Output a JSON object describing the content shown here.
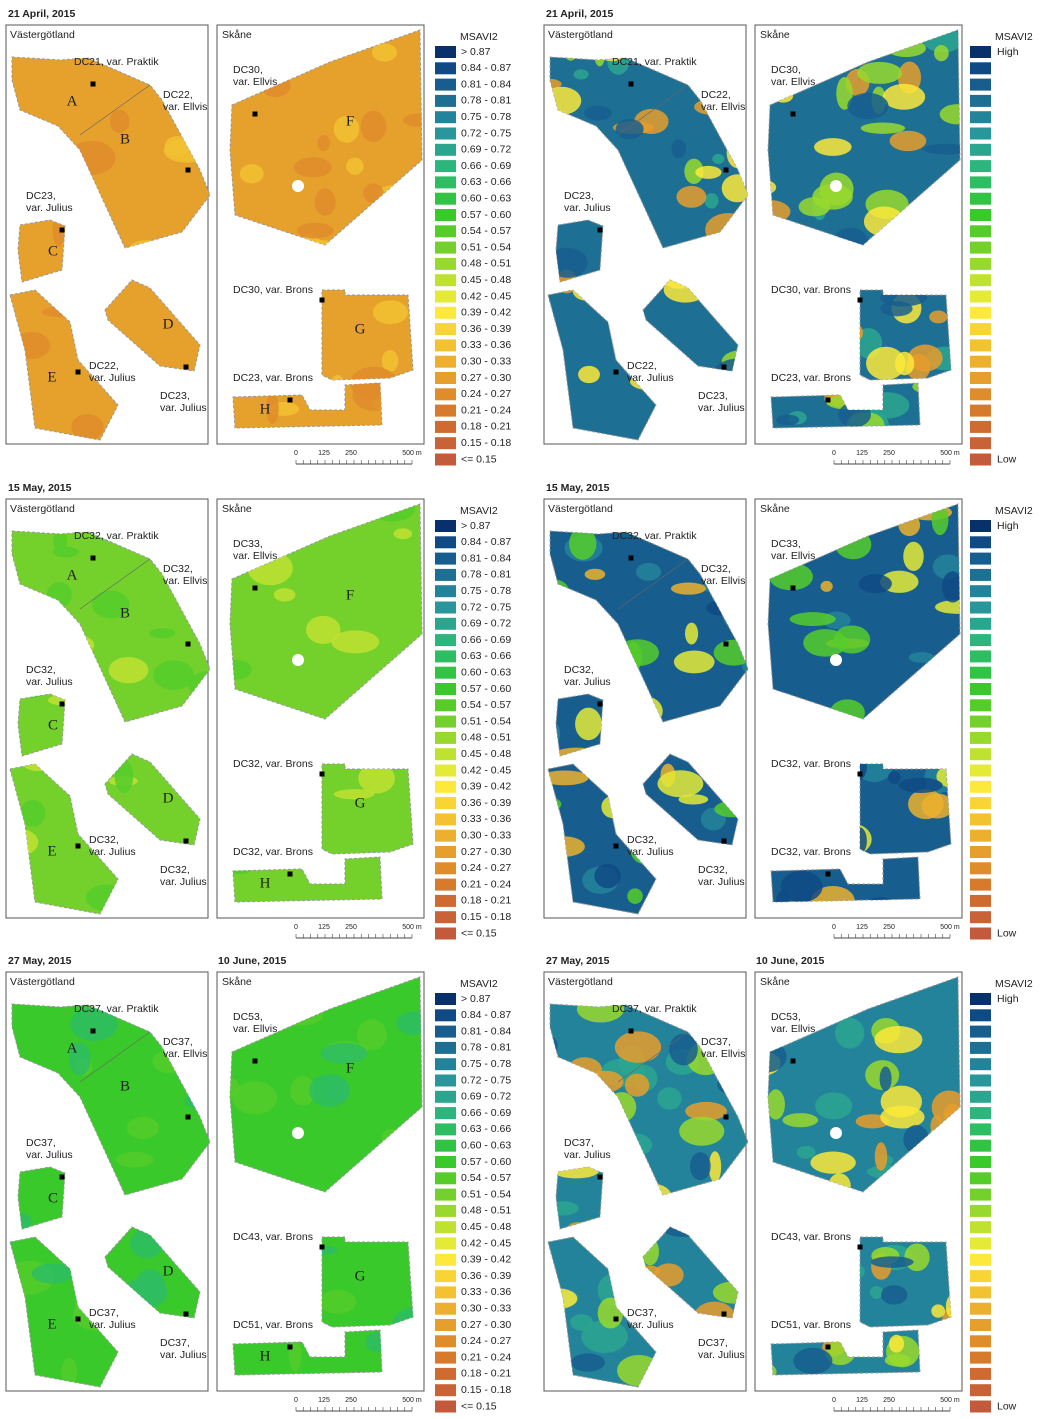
{
  "legend_colors": [
    "#08306b",
    "#0f4a85",
    "#175e8f",
    "#1d6f94",
    "#23839a",
    "#28969a",
    "#2aa68f",
    "#2cb57c",
    "#2ebd63",
    "#31c444",
    "#3ac92b",
    "#55cc2a",
    "#74d12b",
    "#98d92d",
    "#bfe231",
    "#e4ea36",
    "#fde93a",
    "#f8d535",
    "#f2c231",
    "#ecb02e",
    "#e69e2c",
    "#df8c2b",
    "#d77a2c",
    "#cf6a31",
    "#c96237",
    "#c45a3c"
  ],
  "panels": [
    {
      "dates": [
        "21 April, 2015"
      ],
      "west_region": "Västergötland",
      "east_region": "Skåne",
      "field_labels": [
        [
          "DC21, var. Praktik"
        ],
        [
          "DC22,",
          "var. Ellvis"
        ],
        [
          "DC23,",
          "var. Julius"
        ],
        [
          "DC22,",
          "var. Julius"
        ],
        [
          "DC23,",
          "var. Julius"
        ],
        [
          "DC30,",
          "var. Ellvis"
        ],
        [
          "DC30, var. Brons"
        ],
        [
          "DC23, var. Brons"
        ]
      ],
      "letters": [
        "A",
        "B",
        "C",
        "D",
        "E",
        "F",
        "G",
        "H"
      ],
      "scale": [
        "0",
        "125",
        "250",
        "500 m"
      ],
      "legend": {
        "title": "MSAVI2",
        "classes": [
          "> 0.87",
          "0.84 - 0.87",
          "0.81 - 0.84",
          "0.78 - 0.81",
          "0.75 - 0.78",
          "0.72 - 0.75",
          "0.69 - 0.72",
          "0.66 - 0.69",
          "0.63 - 0.66",
          "0.60 - 0.63",
          "0.57 - 0.60",
          "0.54 - 0.57",
          "0.51 - 0.54",
          "0.48 - 0.51",
          "0.45 - 0.48",
          "0.42 - 0.45",
          "0.39 - 0.42",
          "0.36 - 0.39",
          "0.33 - 0.36",
          "0.30 - 0.33",
          "0.27 - 0.30",
          "0.24 - 0.27",
          "0.21 - 0.24",
          "0.18 - 0.21",
          "0.15 - 0.18",
          "<= 0.15"
        ]
      },
      "field_colors": [
        "#e6a02c",
        "#f2c231",
        "#df8c2b"
      ]
    },
    {
      "dates": [
        "21 April, 2015"
      ],
      "west_region": "Västergötland",
      "east_region": "Skåne",
      "field_labels": [
        [
          "DC21, var. Praktik"
        ],
        [
          "DC22,",
          "var. Ellvis"
        ],
        [
          "DC23,",
          "var. Julius"
        ],
        [
          "DC22,",
          "var. Julius"
        ],
        [
          "DC23,",
          "var. Julius"
        ],
        [
          "DC30,",
          "var. Ellvis"
        ],
        [
          "DC30, var. Brons"
        ],
        [
          "DC23, var. Brons"
        ]
      ],
      "scale": [
        "0",
        "125",
        "250",
        "500 m"
      ],
      "legend": {
        "title": "MSAVI2",
        "high": "High",
        "low": "Low"
      },
      "field_colors": [
        "#1d6f94",
        "#2aa68f",
        "#e69e2c",
        "#98d92d",
        "#fde93a",
        "#175e8f"
      ]
    },
    {
      "dates": [
        "15 May, 2015"
      ],
      "west_region": "Västergötland",
      "east_region": "Skåne",
      "field_labels": [
        [
          "DC32, var. Praktik"
        ],
        [
          "DC32,",
          "var. Ellvis"
        ],
        [
          "DC32,",
          "var. Julius"
        ],
        [
          "DC32,",
          "var. Julius"
        ],
        [
          "DC32,",
          "var. Julius"
        ],
        [
          "DC33,",
          "var. Ellvis"
        ],
        [
          "DC32, var. Brons"
        ],
        [
          "DC32, var. Brons"
        ]
      ],
      "letters": [
        "A",
        "B",
        "C",
        "D",
        "E",
        "F",
        "G",
        "H"
      ],
      "scale": [
        "0",
        "125",
        "250",
        "500 m"
      ],
      "legend": {
        "title": "MSAVI2",
        "classes": [
          "> 0.87",
          "0.84 - 0.87",
          "0.81 - 0.84",
          "0.78 - 0.81",
          "0.75 - 0.78",
          "0.72 - 0.75",
          "0.69 - 0.72",
          "0.66 - 0.69",
          "0.63 - 0.66",
          "0.60 - 0.63",
          "0.57 - 0.60",
          "0.54 - 0.57",
          "0.51 - 0.54",
          "0.48 - 0.51",
          "0.45 - 0.48",
          "0.42 - 0.45",
          "0.39 - 0.42",
          "0.36 - 0.39",
          "0.33 - 0.36",
          "0.30 - 0.33",
          "0.27 - 0.30",
          "0.24 - 0.27",
          "0.21 - 0.24",
          "0.18 - 0.21",
          "0.15 - 0.18",
          "<= 0.15"
        ]
      },
      "field_colors": [
        "#74d12b",
        "#bfe231",
        "#55cc2a"
      ]
    },
    {
      "dates": [
        "15 May, 2015"
      ],
      "west_region": "Västergötland",
      "east_region": "Skåne",
      "field_labels": [
        [
          "DC32, var. Praktik"
        ],
        [
          "DC32,",
          "var. Ellvis"
        ],
        [
          "DC32,",
          "var. Julius"
        ],
        [
          "DC32,",
          "var. Julius"
        ],
        [
          "DC32,",
          "var. Julius"
        ],
        [
          "DC33,",
          "var. Ellvis"
        ],
        [
          "DC32, var. Brons"
        ],
        [
          "DC32, var. Brons"
        ]
      ],
      "scale": [
        "0",
        "125",
        "250",
        "500 m"
      ],
      "legend": {
        "title": "MSAVI2",
        "high": "High",
        "low": "Low"
      },
      "field_colors": [
        "#175e8f",
        "#23839a",
        "#ecb02e",
        "#55cc2a",
        "#e4ea36",
        "#0f4a85"
      ]
    },
    {
      "dates": [
        "27 May, 2015",
        "10 June, 2015"
      ],
      "west_region": "Västergötland",
      "east_region": "Skåne",
      "field_labels": [
        [
          "DC37, var. Praktik"
        ],
        [
          "DC37,",
          "var. Ellvis"
        ],
        [
          "DC37,",
          "var. Julius"
        ],
        [
          "DC37,",
          "var. Julius"
        ],
        [
          "DC37,",
          "var. Julius"
        ],
        [
          "DC53,",
          "var. Ellvis"
        ],
        [
          "DC43, var. Brons"
        ],
        [
          "DC51, var. Brons"
        ]
      ],
      "letters": [
        "A",
        "B",
        "C",
        "D",
        "E",
        "F",
        "G",
        "H"
      ],
      "scale": [
        "0",
        "125",
        "250",
        "500 m"
      ],
      "legend": {
        "title": "MSAVI2",
        "classes": [
          "> 0.87",
          "0.84 - 0.87",
          "0.81 - 0.84",
          "0.78 - 0.81",
          "0.75 - 0.78",
          "0.72 - 0.75",
          "0.69 - 0.72",
          "0.66 - 0.69",
          "0.63 - 0.66",
          "0.60 - 0.63",
          "0.57 - 0.60",
          "0.54 - 0.57",
          "0.51 - 0.54",
          "0.48 - 0.51",
          "0.45 - 0.48",
          "0.42 - 0.45",
          "0.39 - 0.42",
          "0.36 - 0.39",
          "0.33 - 0.36",
          "0.30 - 0.33",
          "0.27 - 0.30",
          "0.24 - 0.27",
          "0.21 - 0.24",
          "0.18 - 0.21",
          "0.15 - 0.18",
          "<= 0.15"
        ]
      },
      "field_colors": [
        "#3ac92b",
        "#55cc2a",
        "#2ebd63"
      ]
    },
    {
      "dates": [
        "27 May, 2015",
        "10 June, 2015"
      ],
      "west_region": "Västergötland",
      "east_region": "Skåne",
      "field_labels": [
        [
          "DC37, var. Praktik"
        ],
        [
          "DC37,",
          "var. Ellvis"
        ],
        [
          "DC37,",
          "var. Julius"
        ],
        [
          "DC37,",
          "var. Julius"
        ],
        [
          "DC37,",
          "var. Julius"
        ],
        [
          "DC53,",
          "var. Ellvis"
        ],
        [
          "DC43, var. Brons"
        ],
        [
          "DC51, var. Brons"
        ]
      ],
      "scale": [
        "0",
        "125",
        "250",
        "500 m"
      ],
      "legend": {
        "title": "MSAVI2",
        "high": "High",
        "low": "Low"
      },
      "field_colors": [
        "#23839a",
        "#2aa68f",
        "#e69e2c",
        "#98d92d",
        "#fde93a",
        "#175e8f"
      ]
    }
  ]
}
